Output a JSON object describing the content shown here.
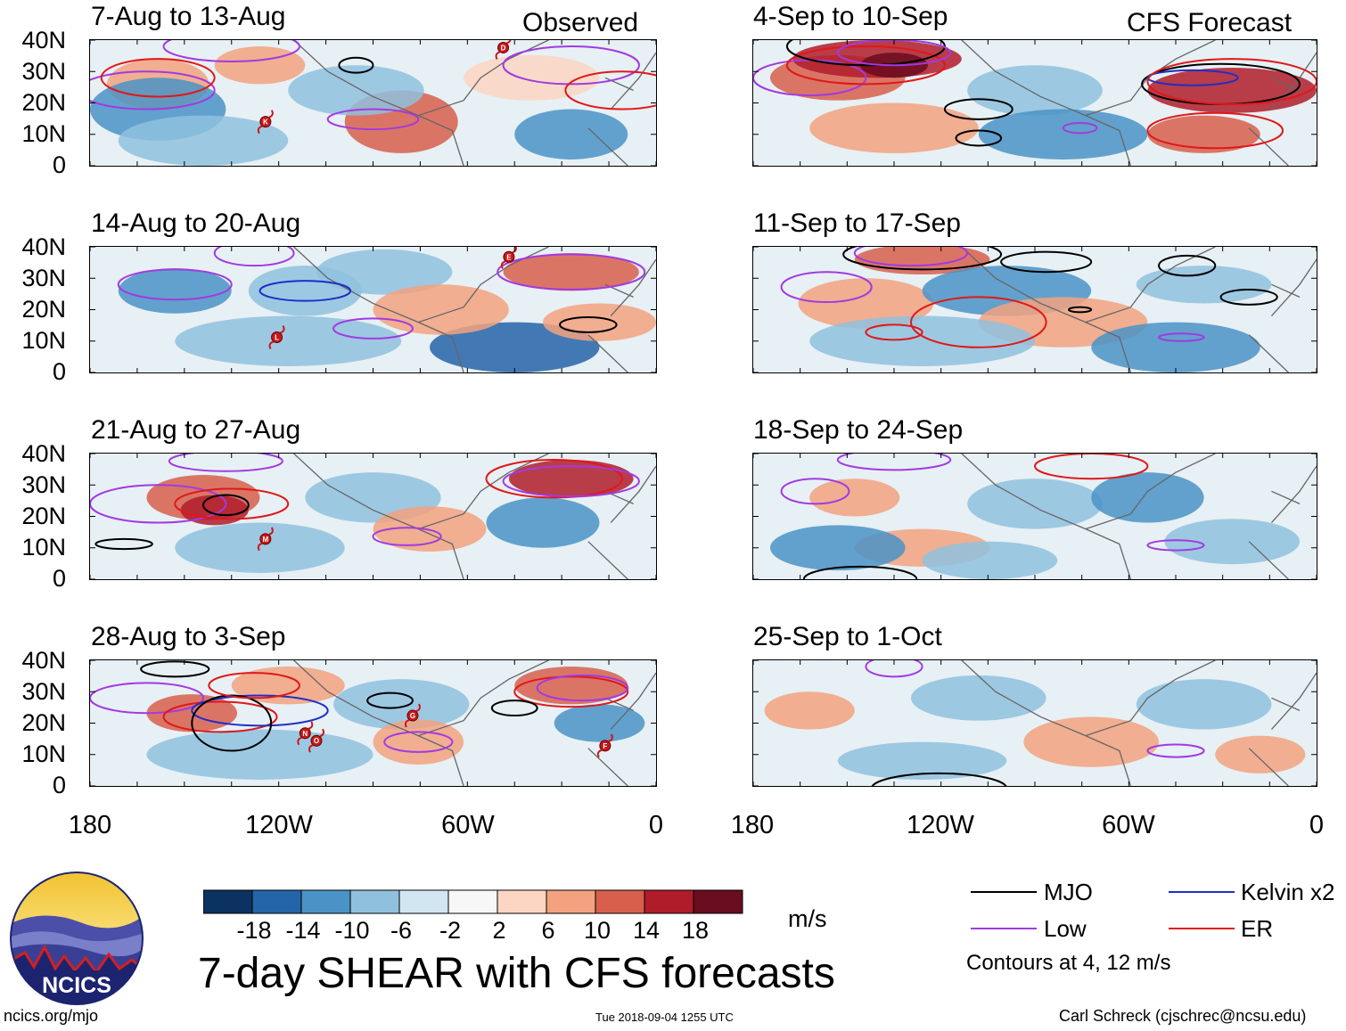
{
  "panels": [
    {
      "id": "p1",
      "title": "7-Aug to 13-Aug",
      "tag": "Observed"
    },
    {
      "id": "p2",
      "title": "14-Aug to 20-Aug"
    },
    {
      "id": "p3",
      "title": "21-Aug to 27-Aug"
    },
    {
      "id": "p4",
      "title": "28-Aug to 3-Sep"
    },
    {
      "id": "p5",
      "title": "4-Sep to 10-Sep",
      "tag": "CFS Forecast"
    },
    {
      "id": "p6",
      "title": "11-Sep to 17-Sep"
    },
    {
      "id": "p7",
      "title": "18-Sep to 24-Sep"
    },
    {
      "id": "p8",
      "title": "25-Sep to 1-Oct"
    }
  ],
  "lat_ticks": [
    "40N",
    "30N",
    "20N",
    "10N",
    "0"
  ],
  "lon_ticks": [
    "180",
    "120W",
    "60W",
    "0"
  ],
  "colorbar": {
    "labels": [
      "-18",
      "-14",
      "-10",
      "-6",
      "-2",
      "2",
      "6",
      "10",
      "14",
      "18"
    ],
    "colors": [
      "#0b3260",
      "#2464a8",
      "#4a93c6",
      "#8fc1de",
      "#d2e6f1",
      "#f7f7f7",
      "#fcd6c2",
      "#f2a27f",
      "#d75f4c",
      "#b01c2a",
      "#690c1f"
    ],
    "units": "m/s"
  },
  "legend": [
    {
      "label": "MJO",
      "color": "#000000"
    },
    {
      "label": "Kelvin x2",
      "color": "#1f2ec8"
    },
    {
      "label": "Low",
      "color": "#a23ae0"
    },
    {
      "label": "ER",
      "color": "#e01818"
    }
  ],
  "contour_note": "Contours at 4, 12 m/s",
  "main_title": "7-day SHEAR with CFS forecasts",
  "logo_text": "NCICS",
  "footer": {
    "left": "ncics.org/mjo",
    "center": "Tue 2018-09-04 1255 UTC",
    "right": "Carl Schreck (cjschrec@ncsu.edu)"
  },
  "chart_data": {
    "type": "heatmap",
    "title": "7-day SHEAR with CFS forecasts",
    "units": "m/s",
    "x_axis": {
      "range": [
        "180",
        "0"
      ],
      "ticks": [
        "180",
        "120W",
        "60W",
        "0"
      ]
    },
    "y_axis": {
      "range": [
        "0",
        "40N"
      ],
      "ticks": [
        "0",
        "10N",
        "20N",
        "30N",
        "40N"
      ]
    },
    "color_levels": [
      -18,
      -14,
      -10,
      -6,
      -2,
      2,
      6,
      10,
      14,
      18
    ],
    "contour_levels": [
      4,
      12
    ],
    "series": [
      {
        "name": "MJO",
        "color": "#000000"
      },
      {
        "name": "Kelvin x2",
        "color": "#1f2ec8"
      },
      {
        "name": "Low",
        "color": "#a23ae0"
      },
      {
        "name": "ER",
        "color": "#e01818"
      }
    ],
    "panels": [
      {
        "period": "7-Aug to 13-Aug",
        "source": "Observed",
        "storms": [
          "D",
          "K"
        ]
      },
      {
        "period": "14-Aug to 20-Aug",
        "source": "Observed",
        "storms": [
          "E",
          "L"
        ]
      },
      {
        "period": "21-Aug to 27-Aug",
        "source": "Observed",
        "storms": [
          "M"
        ]
      },
      {
        "period": "28-Aug to 3-Sep",
        "source": "Observed",
        "storms": [
          "G",
          "N",
          "O",
          "F"
        ]
      },
      {
        "period": "4-Sep to 10-Sep",
        "source": "CFS Forecast",
        "storms": []
      },
      {
        "period": "11-Sep to 17-Sep",
        "source": "CFS Forecast",
        "storms": []
      },
      {
        "period": "18-Sep to 24-Sep",
        "source": "CFS Forecast",
        "storms": []
      },
      {
        "period": "25-Sep to 1-Oct",
        "source": "CFS Forecast",
        "storms": []
      }
    ]
  }
}
